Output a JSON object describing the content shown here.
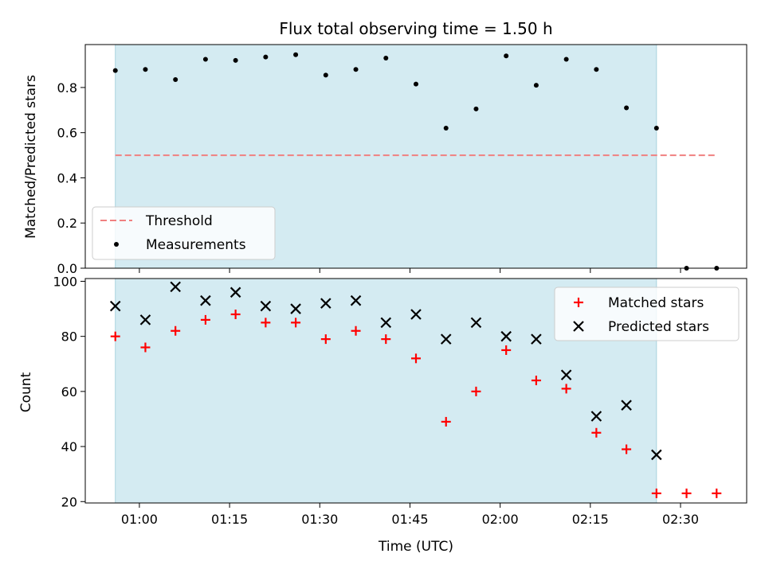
{
  "chart_data": {
    "type": "scatter",
    "title": "Flux total observing time = 1.50 h",
    "xlabel": "Time (UTC)",
    "x_tick_labels": [
      "01:00",
      "01:15",
      "01:30",
      "01:45",
      "02:00",
      "02:15",
      "02:30"
    ],
    "x_range_minutes": [
      -9,
      101
    ],
    "shaded_span_minutes": [
      -4,
      86
    ],
    "shade_color": "#d4ebf2",
    "top": {
      "ylabel": "Matched/Predicted stars",
      "ylim": [
        0,
        0.99
      ],
      "yticks": [
        "0.0",
        "0.2",
        "0.4",
        "0.6",
        "0.8"
      ],
      "threshold": {
        "name": "Threshold",
        "value": 0.5,
        "x_range_minutes": [
          -4,
          96
        ],
        "color": "#f08080"
      },
      "measurements": {
        "name": "Measurements",
        "color": "#000000",
        "x_minutes": [
          -4,
          1,
          6,
          11,
          16,
          21,
          26,
          31,
          36,
          41,
          46,
          51,
          56,
          61,
          66,
          71,
          76,
          81,
          86,
          91,
          96
        ],
        "values": [
          0.875,
          0.88,
          0.835,
          0.925,
          0.92,
          0.935,
          0.945,
          0.855,
          0.88,
          0.93,
          0.815,
          0.62,
          0.705,
          0.94,
          0.81,
          0.925,
          0.88,
          0.71,
          0.62,
          0.0,
          0.0
        ]
      },
      "legend": [
        "Threshold",
        "Measurements"
      ]
    },
    "bottom": {
      "ylabel": "Count",
      "ylim": [
        19.5,
        101
      ],
      "yticks": [
        "20",
        "40",
        "60",
        "80",
        "100"
      ],
      "series": [
        {
          "name": "Matched stars",
          "marker": "plus",
          "color": "#ff0000",
          "x_minutes": [
            -4,
            1,
            6,
            11,
            16,
            21,
            26,
            31,
            36,
            41,
            46,
            51,
            56,
            61,
            66,
            71,
            76,
            81,
            86,
            91,
            96
          ],
          "values": [
            80,
            76,
            82,
            86,
            88,
            85,
            85,
            79,
            82,
            79,
            72,
            49,
            60,
            75,
            64,
            61,
            45,
            39,
            23,
            23,
            23
          ]
        },
        {
          "name": "Predicted stars",
          "marker": "x",
          "color": "#000000",
          "x_minutes": [
            -4,
            1,
            6,
            11,
            16,
            21,
            26,
            31,
            36,
            41,
            46,
            51,
            56,
            61,
            66,
            71,
            76,
            81,
            86
          ],
          "values": [
            91,
            86,
            98,
            93,
            96,
            91,
            90,
            92,
            93,
            85,
            88,
            79,
            85,
            80,
            79,
            66,
            51,
            55,
            37
          ]
        }
      ]
    }
  }
}
